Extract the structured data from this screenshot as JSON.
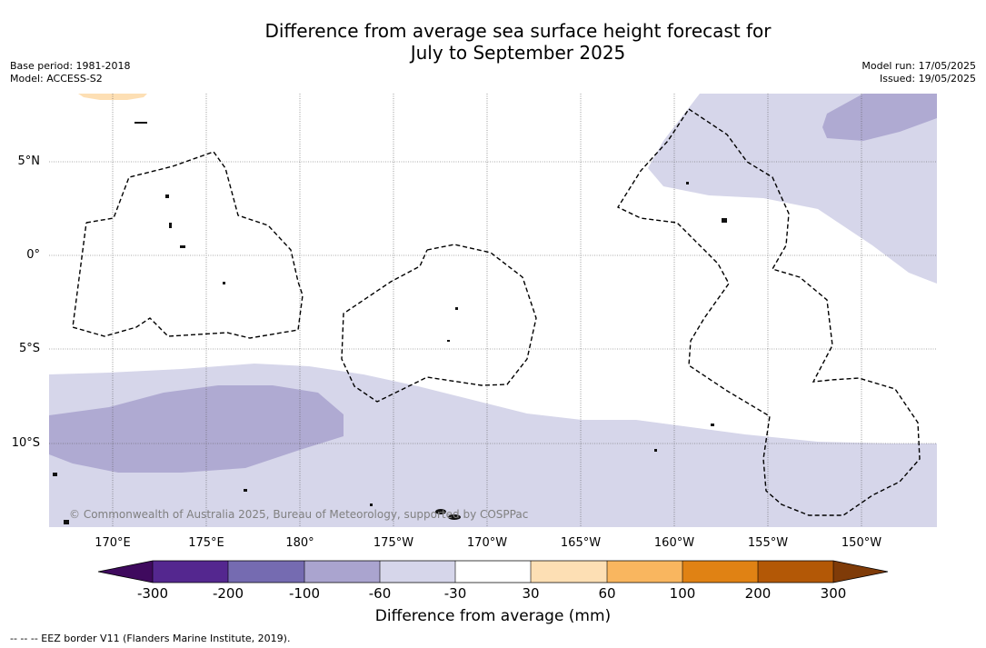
{
  "title": {
    "line1": "Difference from average sea surface height forecast for",
    "line2": "July to September 2025"
  },
  "meta": {
    "base_period": "Base period: 1981-2018",
    "model": "Model: ACCESS-S2",
    "model_run": "Model run: 17/05/2025",
    "issued": "Issued: 19/05/2025"
  },
  "longitude_labels": [
    "170°E",
    "175°E",
    "180°",
    "175°W",
    "170°W",
    "165°W",
    "160°W",
    "155°W",
    "150°W"
  ],
  "latitude_labels": [
    "5°N",
    "0°",
    "5°S",
    "10°S"
  ],
  "copyright": "© Commonwealth of Australia 2025, Bureau of Meteorology, supported by COSPPac",
  "colorbar": {
    "title": "Difference from average (mm)",
    "ticks": [
      "-300",
      "-200",
      "-100",
      "-60",
      "-30",
      "30",
      "60",
      "100",
      "200",
      "300"
    ],
    "colors": [
      "#3f0a5e",
      "#54278f",
      "#756bb1",
      "#aaa4cf",
      "#d6d6ea",
      "#ffffff",
      "#fddfb4",
      "#f9b65f",
      "#e08214",
      "#b35806",
      "#7f3b08"
    ]
  },
  "footnote": "--  --  -- EEZ border V11 (Flanders Marine Institute, 2019)."
}
